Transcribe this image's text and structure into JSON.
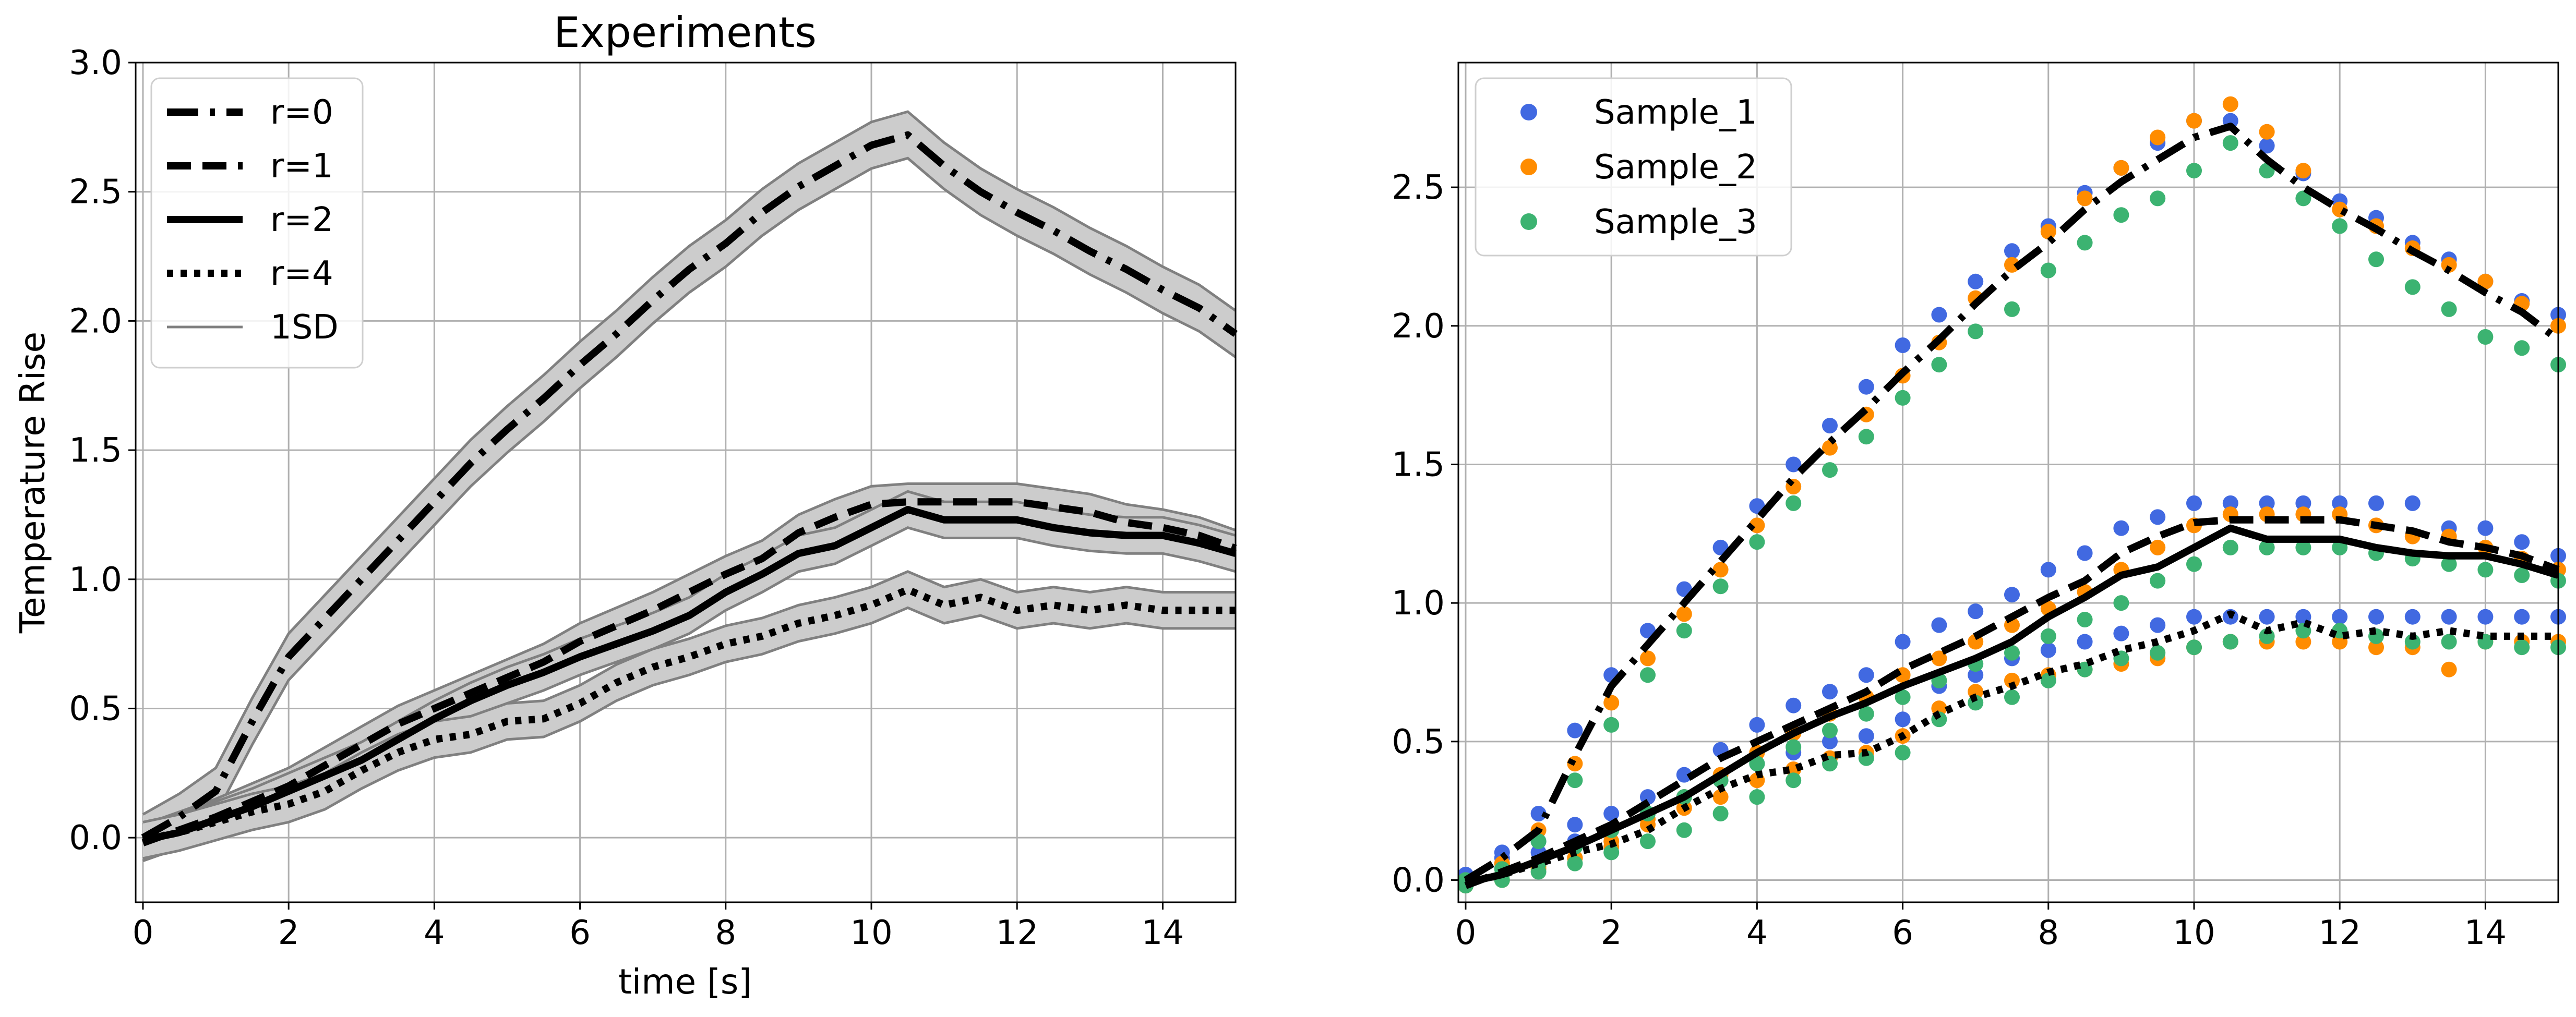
{
  "chart_data": [
    {
      "type": "line",
      "title": "Experiments",
      "xlabel": "time [s]",
      "ylabel": "Temperature Rise",
      "xlim": [
        -0.1,
        15
      ],
      "ylim": [
        -0.25,
        3.0
      ],
      "xticks": [
        0,
        2,
        4,
        6,
        8,
        10,
        12,
        14
      ],
      "yticks": [
        0.0,
        0.5,
        1.0,
        1.5,
        2.0,
        2.5,
        3.0
      ],
      "xtick_labels": [
        "0",
        "2",
        "4",
        "6",
        "8",
        "10",
        "12",
        "14"
      ],
      "ytick_labels": [
        "0.0",
        "0.5",
        "1.0",
        "1.5",
        "2.0",
        "2.5",
        "3.0"
      ],
      "grid": true,
      "legend_position": "top-left",
      "band_label": "1SD",
      "band_color": "#cccccc",
      "band_edge_color": "#808080",
      "series": [
        {
          "name": "r=0",
          "style": "dashdot",
          "band_half_width": 0.09,
          "x": [
            0,
            0.5,
            1,
            1.5,
            2,
            2.5,
            3,
            3.5,
            4,
            4.5,
            5,
            5.5,
            6,
            6.5,
            7,
            7.5,
            8,
            8.5,
            9,
            9.5,
            10,
            10.5,
            11,
            11.5,
            12,
            12.5,
            13,
            13.5,
            14,
            14.5,
            15
          ],
          "y": [
            0.0,
            0.08,
            0.18,
            0.45,
            0.7,
            0.85,
            1.0,
            1.15,
            1.3,
            1.45,
            1.58,
            1.7,
            1.83,
            1.95,
            2.08,
            2.2,
            2.3,
            2.42,
            2.52,
            2.6,
            2.68,
            2.72,
            2.6,
            2.5,
            2.42,
            2.35,
            2.27,
            2.2,
            2.12,
            2.05,
            1.95
          ]
        },
        {
          "name": "r=1",
          "style": "dashed",
          "band_half_width": 0.07,
          "x": [
            0,
            0.5,
            1,
            1.5,
            2,
            2.5,
            3,
            3.5,
            4,
            4.5,
            5,
            5.5,
            6,
            6.5,
            7,
            7.5,
            8,
            8.5,
            9,
            9.5,
            10,
            10.5,
            11,
            11.5,
            12,
            12.5,
            13,
            13.5,
            14,
            14.5,
            15
          ],
          "y": [
            -0.02,
            0.03,
            0.08,
            0.14,
            0.2,
            0.28,
            0.36,
            0.44,
            0.5,
            0.56,
            0.62,
            0.68,
            0.76,
            0.82,
            0.88,
            0.95,
            1.02,
            1.08,
            1.18,
            1.24,
            1.29,
            1.3,
            1.3,
            1.3,
            1.3,
            1.28,
            1.26,
            1.22,
            1.2,
            1.17,
            1.12
          ]
        },
        {
          "name": "r=2",
          "style": "solid",
          "band_half_width": 0.07,
          "x": [
            0,
            0.5,
            1,
            1.5,
            2,
            2.5,
            3,
            3.5,
            4,
            4.5,
            5,
            5.5,
            6,
            6.5,
            7,
            7.5,
            8,
            8.5,
            9,
            9.5,
            10,
            10.5,
            11,
            11.5,
            12,
            12.5,
            13,
            13.5,
            14,
            14.5,
            15
          ],
          "y": [
            -0.01,
            0.02,
            0.07,
            0.12,
            0.18,
            0.24,
            0.3,
            0.38,
            0.46,
            0.53,
            0.59,
            0.64,
            0.7,
            0.75,
            0.8,
            0.86,
            0.95,
            1.02,
            1.1,
            1.13,
            1.2,
            1.27,
            1.23,
            1.23,
            1.23,
            1.2,
            1.18,
            1.17,
            1.17,
            1.14,
            1.1
          ]
        },
        {
          "name": "r=4",
          "style": "dotted",
          "band_half_width": 0.07,
          "x": [
            0,
            0.5,
            1,
            1.5,
            2,
            2.5,
            3,
            3.5,
            4,
            4.5,
            5,
            5.5,
            6,
            6.5,
            7,
            7.5,
            8,
            8.5,
            9,
            9.5,
            10,
            10.5,
            11,
            11.5,
            12,
            12.5,
            13,
            13.5,
            14,
            14.5,
            15
          ],
          "y": [
            -0.01,
            0.02,
            0.06,
            0.1,
            0.13,
            0.18,
            0.26,
            0.33,
            0.38,
            0.4,
            0.45,
            0.46,
            0.52,
            0.6,
            0.66,
            0.7,
            0.75,
            0.78,
            0.83,
            0.86,
            0.9,
            0.96,
            0.9,
            0.93,
            0.88,
            0.9,
            0.88,
            0.9,
            0.88,
            0.88,
            0.88
          ]
        }
      ]
    },
    {
      "type": "scatter",
      "title": "",
      "xlabel": "",
      "ylabel": "",
      "xlim": [
        -0.1,
        15
      ],
      "ylim": [
        -0.08,
        2.95
      ],
      "xticks": [
        0,
        2,
        4,
        6,
        8,
        10,
        12,
        14
      ],
      "yticks": [
        0.0,
        0.5,
        1.0,
        1.5,
        2.0,
        2.5
      ],
      "xtick_labels": [
        "0",
        "2",
        "4",
        "6",
        "8",
        "10",
        "12",
        "14"
      ],
      "ytick_labels": [
        "0.0",
        "0.5",
        "1.0",
        "1.5",
        "2.0",
        "2.5"
      ],
      "grid": true,
      "legend_position": "top-left",
      "x": [
        0,
        0.5,
        1,
        1.5,
        2,
        2.5,
        3,
        3.5,
        4,
        4.5,
        5,
        5.5,
        6,
        6.5,
        7,
        7.5,
        8,
        8.5,
        9,
        9.5,
        10,
        10.5,
        11,
        11.5,
        12,
        12.5,
        13,
        13.5,
        14,
        14.5,
        15
      ],
      "lines": [
        {
          "style": "dashdot",
          "y": [
            0.0,
            0.08,
            0.18,
            0.45,
            0.7,
            0.85,
            1.0,
            1.15,
            1.3,
            1.45,
            1.58,
            1.7,
            1.83,
            1.95,
            2.08,
            2.2,
            2.3,
            2.42,
            2.52,
            2.6,
            2.68,
            2.72,
            2.6,
            2.5,
            2.42,
            2.35,
            2.27,
            2.2,
            2.12,
            2.05,
            1.95
          ]
        },
        {
          "style": "dashed",
          "y": [
            -0.02,
            0.03,
            0.08,
            0.14,
            0.2,
            0.28,
            0.36,
            0.44,
            0.5,
            0.56,
            0.62,
            0.68,
            0.76,
            0.82,
            0.88,
            0.95,
            1.02,
            1.08,
            1.18,
            1.24,
            1.29,
            1.3,
            1.3,
            1.3,
            1.3,
            1.28,
            1.26,
            1.22,
            1.2,
            1.17,
            1.12
          ]
        },
        {
          "style": "solid",
          "y": [
            -0.01,
            0.02,
            0.07,
            0.12,
            0.18,
            0.24,
            0.3,
            0.38,
            0.46,
            0.53,
            0.59,
            0.64,
            0.7,
            0.75,
            0.8,
            0.86,
            0.95,
            1.02,
            1.1,
            1.13,
            1.2,
            1.27,
            1.23,
            1.23,
            1.23,
            1.2,
            1.18,
            1.17,
            1.17,
            1.14,
            1.1
          ]
        },
        {
          "style": "dotted",
          "y": [
            -0.01,
            0.02,
            0.06,
            0.1,
            0.13,
            0.18,
            0.26,
            0.33,
            0.38,
            0.4,
            0.45,
            0.46,
            0.52,
            0.6,
            0.66,
            0.7,
            0.75,
            0.78,
            0.83,
            0.86,
            0.9,
            0.96,
            0.9,
            0.93,
            0.88,
            0.9,
            0.88,
            0.9,
            0.88,
            0.88,
            0.88
          ]
        }
      ],
      "series": [
        {
          "name": "Sample_1",
          "color": "#4169e1",
          "groups": [
            [
              0.0,
              0.1,
              0.24,
              0.54,
              0.74,
              0.9,
              1.05,
              1.2,
              1.35,
              1.5,
              1.64,
              1.78,
              1.93,
              2.04,
              2.16,
              2.27,
              2.36,
              2.48,
              2.57,
              2.66,
              2.74,
              2.74,
              2.65,
              2.55,
              2.45,
              2.39,
              2.3,
              2.24,
              2.16,
              2.09,
              2.04
            ],
            [
              0.02,
              0.08,
              0.14,
              0.2,
              0.24,
              0.3,
              0.38,
              0.47,
              0.56,
              0.63,
              0.68,
              0.74,
              0.86,
              0.92,
              0.97,
              1.03,
              1.12,
              1.18,
              1.27,
              1.31,
              1.36,
              1.36,
              1.36,
              1.36,
              1.36,
              1.36,
              1.36,
              1.27,
              1.27,
              1.22,
              1.17
            ],
            [
              0.0,
              0.04,
              0.1,
              0.14,
              0.18,
              0.24,
              0.3,
              0.36,
              0.42,
              0.46,
              0.5,
              0.52,
              0.58,
              0.7,
              0.74,
              0.8,
              0.83,
              0.86,
              0.89,
              0.92,
              0.95,
              0.95,
              0.95,
              0.95,
              0.95,
              0.95,
              0.95,
              0.95,
              0.95,
              0.95,
              0.95
            ]
          ]
        },
        {
          "name": "Sample_2",
          "color": "#ff8c00",
          "groups": [
            [
              0.0,
              0.06,
              0.18,
              0.42,
              0.64,
              0.8,
              0.96,
              1.12,
              1.28,
              1.42,
              1.56,
              1.68,
              1.82,
              1.94,
              2.1,
              2.22,
              2.34,
              2.46,
              2.57,
              2.68,
              2.74,
              2.8,
              2.7,
              2.56,
              2.42,
              2.36,
              2.28,
              2.22,
              2.16,
              2.08,
              2.0
            ],
            [
              -0.02,
              0.0,
              0.04,
              0.08,
              0.14,
              0.22,
              0.3,
              0.38,
              0.46,
              0.53,
              0.6,
              0.66,
              0.74,
              0.8,
              0.86,
              0.92,
              0.98,
              1.04,
              1.12,
              1.2,
              1.28,
              1.32,
              1.32,
              1.32,
              1.32,
              1.28,
              1.24,
              1.24,
              1.2,
              1.16,
              1.12
            ],
            [
              0.0,
              0.02,
              0.05,
              0.08,
              0.12,
              0.2,
              0.26,
              0.3,
              0.36,
              0.4,
              0.44,
              0.46,
              0.52,
              0.62,
              0.68,
              0.72,
              0.74,
              0.76,
              0.78,
              0.8,
              0.84,
              0.86,
              0.86,
              0.86,
              0.86,
              0.84,
              0.84,
              0.76,
              0.86,
              0.86,
              0.86
            ]
          ]
        },
        {
          "name": "Sample_3",
          "color": "#3cb371",
          "groups": [
            [
              0.0,
              0.04,
              0.14,
              0.36,
              0.56,
              0.74,
              0.9,
              1.06,
              1.22,
              1.36,
              1.48,
              1.6,
              1.74,
              1.86,
              1.98,
              2.06,
              2.2,
              2.3,
              2.4,
              2.46,
              2.56,
              2.66,
              2.56,
              2.46,
              2.36,
              2.24,
              2.14,
              2.06,
              1.96,
              1.92,
              1.86
            ],
            [
              -0.02,
              0.02,
              0.06,
              0.12,
              0.18,
              0.24,
              0.3,
              0.36,
              0.42,
              0.48,
              0.54,
              0.6,
              0.66,
              0.72,
              0.78,
              0.82,
              0.88,
              0.94,
              1.0,
              1.08,
              1.14,
              1.2,
              1.2,
              1.2,
              1.2,
              1.18,
              1.16,
              1.14,
              1.12,
              1.1,
              1.08
            ],
            [
              0.0,
              0.0,
              0.03,
              0.06,
              0.1,
              0.14,
              0.18,
              0.24,
              0.3,
              0.36,
              0.42,
              0.44,
              0.46,
              0.58,
              0.64,
              0.66,
              0.72,
              0.76,
              0.8,
              0.82,
              0.84,
              0.86,
              0.88,
              0.9,
              0.9,
              0.88,
              0.86,
              0.86,
              0.86,
              0.84,
              0.84
            ]
          ]
        }
      ]
    }
  ]
}
